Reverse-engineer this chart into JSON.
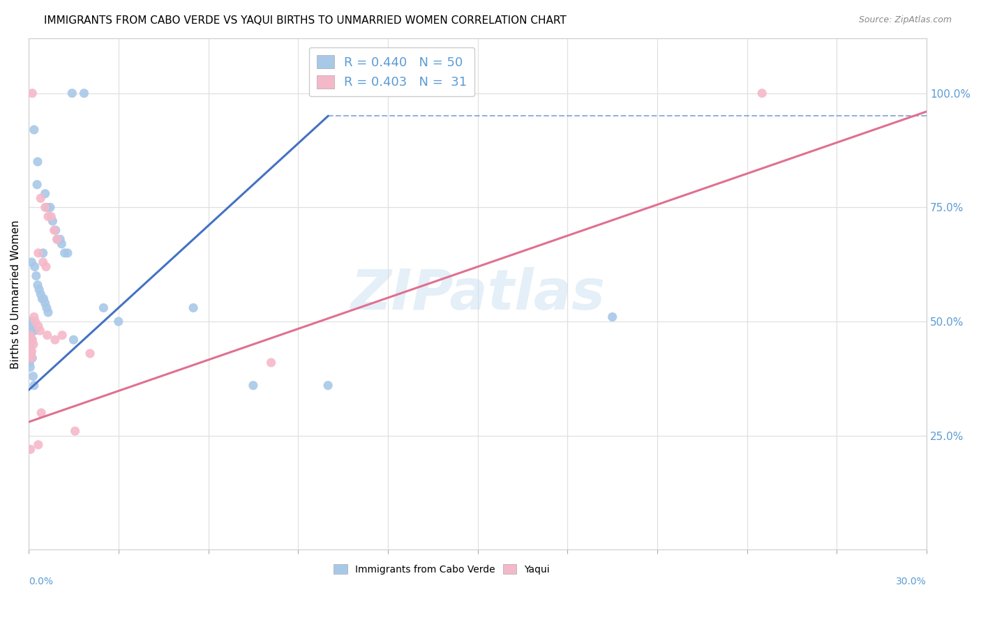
{
  "title": "IMMIGRANTS FROM CABO VERDE VS YAQUI BIRTHS TO UNMARRIED WOMEN CORRELATION CHART",
  "source": "Source: ZipAtlas.com",
  "ylabel": "Births to Unmarried Women",
  "R_blue": 0.44,
  "N_blue": 50,
  "R_pink": 0.403,
  "N_pink": 31,
  "xmin": 0.0,
  "xmax": 30.0,
  "ymin": 0.0,
  "ymax": 112.0,
  "yticks_right": [
    25.0,
    50.0,
    75.0,
    100.0
  ],
  "watermark": "ZIPatlas",
  "blue_color": "#a8c8e8",
  "pink_color": "#f5b8c8",
  "blue_line_color": "#4472c4",
  "pink_line_color": "#e07090",
  "dashed_line_color": "#8ab0d8",
  "axis_label_color": "#5b9bd5",
  "grid_color": "#e0e0e0",
  "blue_dots": [
    [
      0.18,
      92.0
    ],
    [
      0.3,
      85.0
    ],
    [
      0.28,
      80.0
    ],
    [
      1.45,
      100.0
    ],
    [
      1.85,
      100.0
    ],
    [
      0.55,
      78.0
    ],
    [
      0.62,
      75.0
    ],
    [
      0.72,
      75.0
    ],
    [
      0.8,
      72.0
    ],
    [
      0.9,
      70.0
    ],
    [
      0.95,
      68.0
    ],
    [
      1.05,
      68.0
    ],
    [
      1.1,
      67.0
    ],
    [
      1.2,
      65.0
    ],
    [
      1.3,
      65.0
    ],
    [
      0.48,
      65.0
    ],
    [
      0.1,
      63.0
    ],
    [
      0.2,
      62.0
    ],
    [
      0.25,
      60.0
    ],
    [
      0.3,
      58.0
    ],
    [
      0.35,
      57.0
    ],
    [
      0.4,
      56.0
    ],
    [
      0.45,
      55.0
    ],
    [
      0.5,
      55.0
    ],
    [
      0.55,
      54.0
    ],
    [
      0.6,
      53.0
    ],
    [
      0.65,
      52.0
    ],
    [
      0.08,
      50.0
    ],
    [
      0.12,
      49.0
    ],
    [
      0.15,
      48.0
    ],
    [
      0.2,
      48.0
    ],
    [
      0.05,
      47.0
    ],
    [
      0.08,
      46.0
    ],
    [
      0.1,
      45.5
    ],
    [
      0.03,
      45.0
    ],
    [
      0.05,
      44.0
    ],
    [
      0.08,
      43.0
    ],
    [
      0.12,
      42.0
    ],
    [
      0.0,
      42.0
    ],
    [
      0.03,
      41.0
    ],
    [
      0.05,
      40.0
    ],
    [
      0.15,
      38.0
    ],
    [
      0.18,
      36.0
    ],
    [
      1.5,
      46.0
    ],
    [
      2.5,
      53.0
    ],
    [
      3.0,
      50.0
    ],
    [
      5.5,
      53.0
    ],
    [
      7.5,
      36.0
    ],
    [
      10.0,
      36.0
    ],
    [
      19.5,
      51.0
    ]
  ],
  "pink_dots": [
    [
      0.12,
      100.0
    ],
    [
      24.5,
      100.0
    ],
    [
      0.4,
      77.0
    ],
    [
      0.55,
      75.0
    ],
    [
      0.65,
      73.0
    ],
    [
      0.75,
      73.0
    ],
    [
      0.85,
      70.0
    ],
    [
      0.95,
      68.0
    ],
    [
      0.32,
      65.0
    ],
    [
      0.48,
      63.0
    ],
    [
      0.58,
      62.0
    ],
    [
      0.18,
      51.0
    ],
    [
      0.22,
      50.0
    ],
    [
      0.32,
      49.0
    ],
    [
      0.38,
      48.0
    ],
    [
      0.06,
      47.0
    ],
    [
      0.12,
      46.0
    ],
    [
      0.16,
      45.0
    ],
    [
      0.06,
      44.0
    ],
    [
      0.1,
      43.5
    ],
    [
      0.06,
      43.0
    ],
    [
      0.09,
      42.0
    ],
    [
      0.62,
      47.0
    ],
    [
      0.88,
      46.0
    ],
    [
      1.12,
      47.0
    ],
    [
      0.42,
      30.0
    ],
    [
      2.05,
      43.0
    ],
    [
      8.1,
      41.0
    ],
    [
      1.55,
      26.0
    ],
    [
      0.06,
      22.0
    ],
    [
      0.32,
      23.0
    ]
  ],
  "blue_line_x0": 0.0,
  "blue_line_y0": 35.0,
  "blue_line_x1": 10.0,
  "blue_line_y1": 95.0,
  "blue_dash_x0": 10.0,
  "blue_dash_y0": 95.0,
  "blue_dash_x1": 30.0,
  "blue_dash_y1": 95.0,
  "pink_line_x0": 0.0,
  "pink_line_y0": 28.0,
  "pink_line_x1": 30.0,
  "pink_line_y1": 96.0
}
